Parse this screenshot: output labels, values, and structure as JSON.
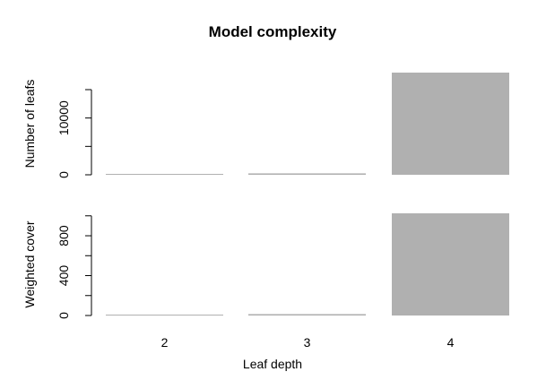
{
  "chart_data": {
    "type": "bar",
    "title": "Model complexity",
    "xlabel": "Leaf depth",
    "categories": [
      "2",
      "3",
      "4"
    ],
    "bar_color": "#b0b0b0",
    "panels": [
      {
        "ylabel": "Number of leafs",
        "ylim": [
          0,
          18000
        ],
        "yticks": [
          0,
          5000,
          10000,
          15000
        ],
        "ytick_labels": [
          "0",
          "",
          "10000",
          ""
        ],
        "values": [
          40,
          250,
          18000
        ]
      },
      {
        "ylabel": "Weighted cover",
        "ylim": [
          0,
          1025
        ],
        "yticks": [
          0,
          200,
          400,
          600,
          800,
          1000
        ],
        "ytick_labels": [
          "0",
          "",
          "400",
          "",
          "800",
          ""
        ],
        "values": [
          2,
          14,
          1025
        ]
      }
    ]
  }
}
